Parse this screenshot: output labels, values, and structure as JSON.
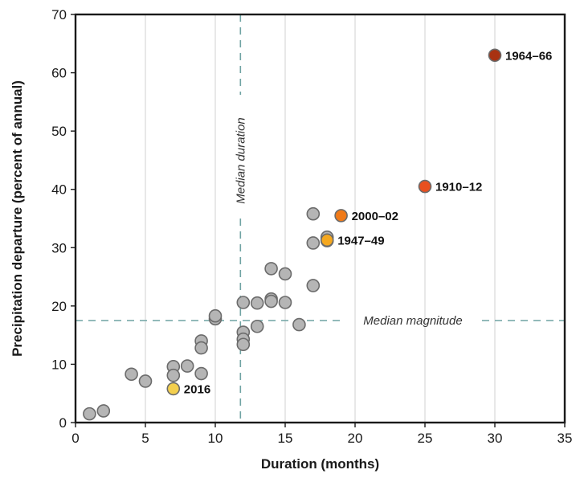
{
  "chart_data": {
    "type": "scatter",
    "xlabel": "Duration (months)",
    "ylabel": "Precipitation departure (percent of annual)",
    "xlim": [
      0,
      35
    ],
    "ylim": [
      0,
      70
    ],
    "x_ticks": [
      0,
      5,
      10,
      15,
      20,
      25,
      30,
      35
    ],
    "y_ticks": [
      0,
      10,
      20,
      30,
      40,
      50,
      60,
      70
    ],
    "grid": "vertical",
    "default_point_color": "#b5b5b5",
    "points": [
      {
        "x": 1,
        "y": 1.5
      },
      {
        "x": 2,
        "y": 2
      },
      {
        "x": 4,
        "y": 8.3
      },
      {
        "x": 5,
        "y": 7.1
      },
      {
        "x": 7,
        "y": 9.6
      },
      {
        "x": 7,
        "y": 8.1
      },
      {
        "x": 8,
        "y": 9.7
      },
      {
        "x": 9,
        "y": 14
      },
      {
        "x": 9,
        "y": 12.8
      },
      {
        "x": 9,
        "y": 8.4
      },
      {
        "x": 10,
        "y": 17.8
      },
      {
        "x": 10,
        "y": 18.3
      },
      {
        "x": 12,
        "y": 20.6
      },
      {
        "x": 12,
        "y": 15.5
      },
      {
        "x": 12,
        "y": 14.3
      },
      {
        "x": 12,
        "y": 13.4
      },
      {
        "x": 13,
        "y": 20.5
      },
      {
        "x": 13,
        "y": 16.5
      },
      {
        "x": 14,
        "y": 26.4
      },
      {
        "x": 14,
        "y": 21.2
      },
      {
        "x": 14,
        "y": 20.8
      },
      {
        "x": 15,
        "y": 25.5
      },
      {
        "x": 15,
        "y": 20.6
      },
      {
        "x": 16,
        "y": 16.8
      },
      {
        "x": 17,
        "y": 35.8
      },
      {
        "x": 17,
        "y": 30.8
      },
      {
        "x": 17,
        "y": 23.5
      },
      {
        "x": 18,
        "y": 31.8
      },
      {
        "x": 18,
        "y": 31.2
      },
      {
        "x": 7,
        "y": 5.8,
        "label": "2016",
        "color": "#f3cf4e"
      },
      {
        "x": 18,
        "y": 31.3,
        "label": "1947–49",
        "color": "#f5a81f"
      },
      {
        "x": 19,
        "y": 35.5,
        "label": "2000–02",
        "color": "#f07a18"
      },
      {
        "x": 25,
        "y": 40.5,
        "label": "1910–12",
        "color": "#e8501f"
      },
      {
        "x": 30,
        "y": 63,
        "label": "1964–66",
        "color": "#a83212"
      }
    ],
    "reference_lines": [
      {
        "orientation": "vertical",
        "value": 11.8,
        "label": "Median duration"
      },
      {
        "orientation": "horizontal",
        "value": 17.5,
        "label": "Median magnitude"
      }
    ],
    "colors": {
      "median_line": "#6fa3a3",
      "grid": "#d0d0d0",
      "frame": "#1a1a1a"
    }
  }
}
